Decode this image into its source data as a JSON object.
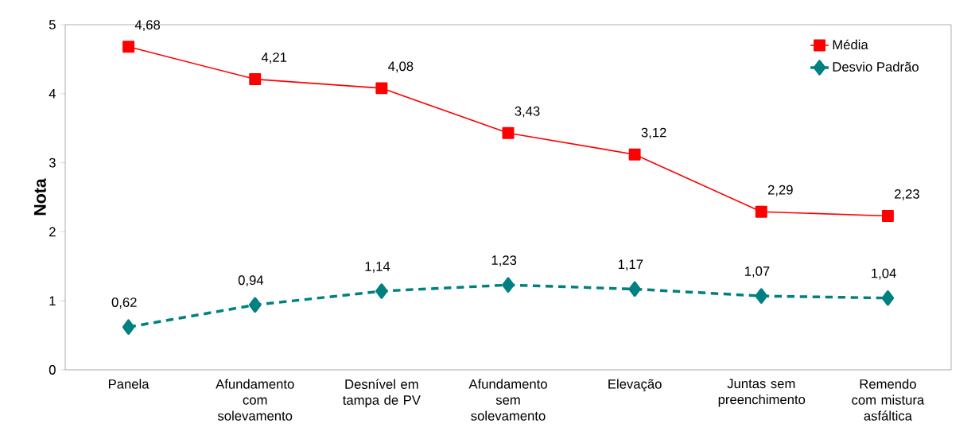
{
  "chart_data": {
    "type": "line",
    "ylabel": "Nota",
    "legend": "top right",
    "categories": [
      "Panela",
      "Afundamento com solevamento",
      "Desnível em tampa de PV",
      "Afundamento sem solevamento",
      "Elevação",
      "Juntas sem preenchimento",
      "Remendo com mistura asfáltica"
    ],
    "ylim": [
      0,
      5
    ],
    "yticks": [
      0,
      1,
      2,
      3,
      4,
      5
    ],
    "series": [
      {
        "name": "Média",
        "color": "#ff0000",
        "marker": "square",
        "line_style": "solid",
        "values": [
          4.68,
          4.21,
          4.08,
          3.43,
          3.12,
          2.29,
          2.23
        ],
        "value_labels": [
          "4,68",
          "4,21",
          "4,08",
          "3,43",
          "3,12",
          "2,29",
          "2,23"
        ]
      },
      {
        "name": "Desvio Padrão",
        "color": "#008080",
        "marker": "diamond",
        "line_style": "dashed",
        "values": [
          0.62,
          0.94,
          1.14,
          1.23,
          1.17,
          1.07,
          1.04
        ],
        "value_labels": [
          "0,62",
          "0,94",
          "1,14",
          "1,23",
          "1,17",
          "1,07",
          "1,04"
        ]
      }
    ]
  }
}
